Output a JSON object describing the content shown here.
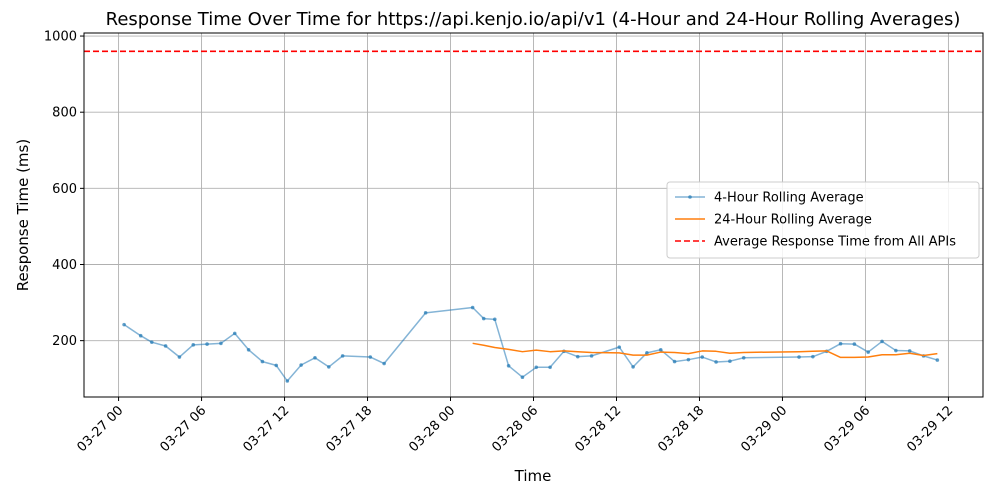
{
  "chart_data": {
    "type": "line",
    "title": "Response Time Over Time for https://api.kenjo.io/api/v1 (4-Hour and 24-Hour Rolling Averages)",
    "xlabel": "Time",
    "ylabel": "Response Time (ms)",
    "x_ticks": [
      "03-27 00",
      "03-27 06",
      "03-27 12",
      "03-27 18",
      "03-28 00",
      "03-28 06",
      "03-28 12",
      "03-28 18",
      "03-29 00",
      "03-29 06",
      "03-29 12"
    ],
    "x_tick_hours": [
      0,
      6,
      12,
      18,
      24,
      30,
      36,
      42,
      48,
      54,
      60
    ],
    "xlim_hours": [
      -2.5,
      62.5
    ],
    "y_ticks": [
      200,
      400,
      600,
      800,
      1000
    ],
    "ylim": [
      52,
      1008
    ],
    "grid": true,
    "legend_position": "center-right",
    "series": [
      {
        "name": "4-Hour Rolling Average",
        "color": "#1f77b4",
        "style": "line-with-points",
        "points": [
          [
            0.4,
            242
          ],
          [
            1.6,
            213
          ],
          [
            2.4,
            196
          ],
          [
            3.4,
            186
          ],
          [
            4.4,
            157
          ],
          [
            5.4,
            189
          ],
          [
            6.4,
            191
          ],
          [
            7.4,
            193
          ],
          [
            8.4,
            219
          ],
          [
            9.4,
            176
          ],
          [
            10.4,
            145
          ],
          [
            11.4,
            135
          ],
          [
            12.2,
            94
          ],
          [
            13.2,
            136
          ],
          [
            14.2,
            155
          ],
          [
            15.2,
            131
          ],
          [
            16.2,
            160
          ],
          [
            18.2,
            157
          ],
          [
            19.2,
            140
          ],
          [
            22.2,
            273
          ],
          [
            25.6,
            287
          ],
          [
            26.4,
            258
          ],
          [
            27.2,
            256
          ],
          [
            28.2,
            134
          ],
          [
            29.2,
            104
          ],
          [
            30.2,
            130
          ],
          [
            31.2,
            130
          ],
          [
            32.2,
            172
          ],
          [
            33.2,
            158
          ],
          [
            34.2,
            160
          ],
          [
            36.2,
            183
          ],
          [
            37.2,
            131
          ],
          [
            38.2,
            168
          ],
          [
            39.2,
            176
          ],
          [
            40.2,
            145
          ],
          [
            41.2,
            150
          ],
          [
            42.2,
            157
          ],
          [
            43.2,
            144
          ],
          [
            44.2,
            146
          ],
          [
            45.2,
            155
          ],
          [
            49.2,
            157
          ],
          [
            50.2,
            158
          ],
          [
            51.2,
            172
          ],
          [
            52.2,
            192
          ],
          [
            53.2,
            191
          ],
          [
            54.2,
            170
          ],
          [
            55.2,
            198
          ],
          [
            56.2,
            174
          ],
          [
            57.2,
            173
          ],
          [
            58.2,
            160
          ],
          [
            59.2,
            149
          ]
        ]
      },
      {
        "name": "24-Hour Rolling Average",
        "color": "#ff7f0e",
        "style": "line",
        "points": [
          [
            25.6,
            193
          ],
          [
            26.4,
            188
          ],
          [
            27.2,
            182
          ],
          [
            28.2,
            177
          ],
          [
            29.2,
            171
          ],
          [
            30.2,
            175
          ],
          [
            31.2,
            171
          ],
          [
            32.2,
            173
          ],
          [
            33.2,
            171
          ],
          [
            34.2,
            169
          ],
          [
            36.2,
            168
          ],
          [
            37.2,
            162
          ],
          [
            38.2,
            162
          ],
          [
            39.2,
            170
          ],
          [
            40.2,
            169
          ],
          [
            41.2,
            166
          ],
          [
            42.2,
            173
          ],
          [
            43.2,
            172
          ],
          [
            44.2,
            167
          ],
          [
            45.2,
            169
          ],
          [
            49.2,
            171
          ],
          [
            50.2,
            172
          ],
          [
            51.2,
            173
          ],
          [
            52.2,
            156
          ],
          [
            53.2,
            156
          ],
          [
            54.2,
            157
          ],
          [
            55.2,
            163
          ],
          [
            56.2,
            163
          ],
          [
            57.2,
            167
          ],
          [
            58.2,
            161
          ],
          [
            59.2,
            166
          ]
        ]
      },
      {
        "name": "Average Response Time from All APIs",
        "color": "#ff0000",
        "style": "dashed-hline",
        "value": 960
      }
    ]
  }
}
